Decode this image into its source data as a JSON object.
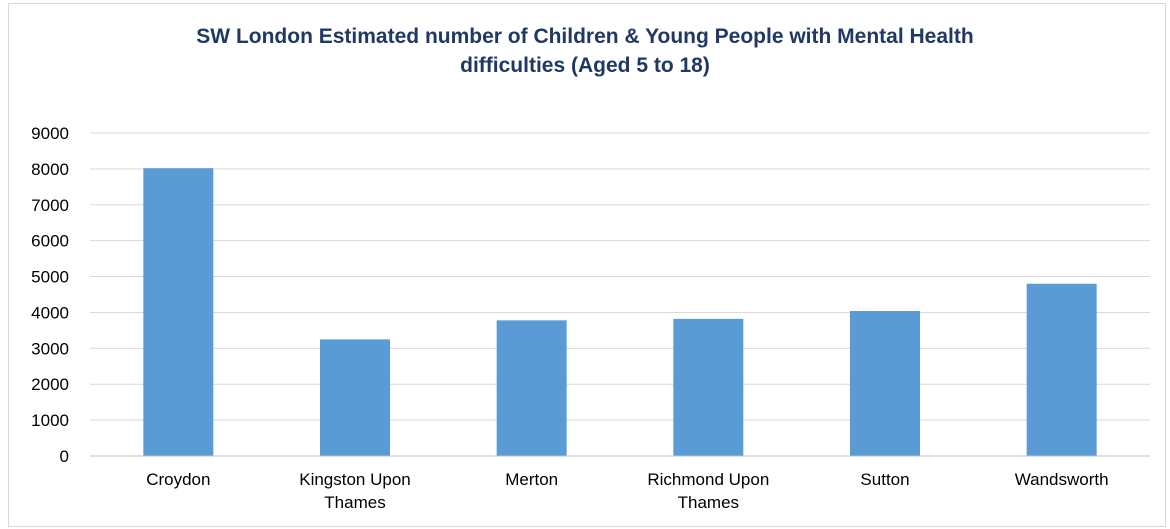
{
  "chart_data": {
    "type": "bar",
    "title": "SW London Estimated number of Children & Young People  with Mental Health\ndifficulties (Aged 5 to 18)",
    "xlabel": "",
    "ylabel": "",
    "categories": [
      [
        "Croydon"
      ],
      [
        "Kingston Upon",
        "Thames"
      ],
      [
        "Merton"
      ],
      [
        "Richmond Upon",
        "Thames"
      ],
      [
        "Sutton"
      ],
      [
        "Wandsworth"
      ]
    ],
    "values": [
      8020,
      3250,
      3780,
      3820,
      4040,
      4800
    ],
    "ylim": [
      0,
      9000
    ],
    "yticks": [
      "0",
      "1000",
      "2000",
      "3000",
      "4000",
      "5000",
      "6000",
      "7000",
      "8000",
      "9000"
    ],
    "grid": true,
    "legend": "none",
    "colors": {
      "bar": "#5b9bd5",
      "grid": "#d9d9d9",
      "axis": "#bfbfbf",
      "title": "#1f3864"
    }
  }
}
